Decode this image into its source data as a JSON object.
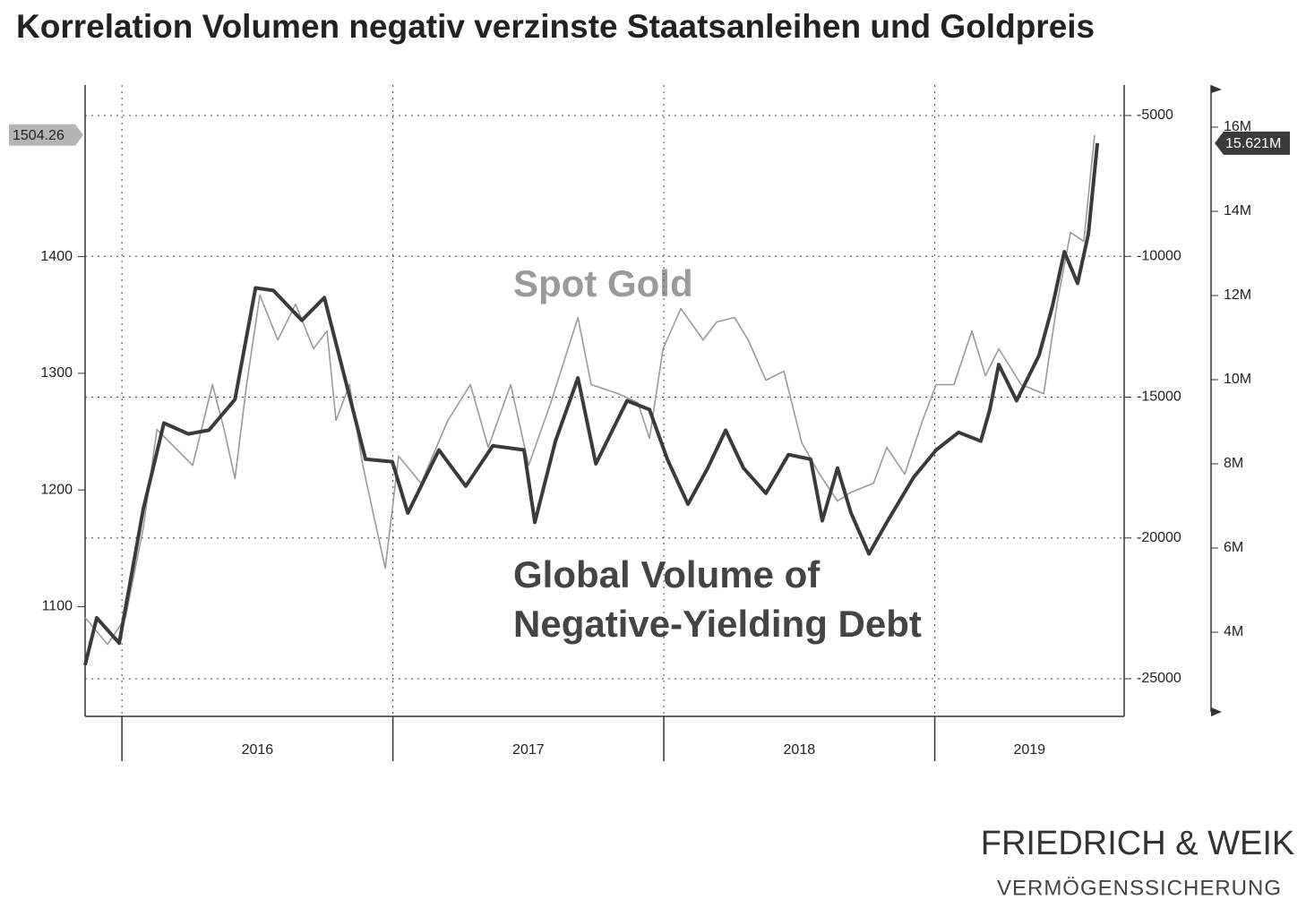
{
  "chart_data": {
    "type": "line",
    "title": "Korrelation Volumen negativ verzinste Staatsanleihen und Goldpreis",
    "xlim": [
      2015.864,
      2019.699
    ],
    "xticks": [
      2016,
      2017,
      2018,
      2019
    ],
    "ylim": [
      1006,
      1547
    ],
    "yticks": [
      1100,
      1200,
      1300,
      1400
    ],
    "y2lim": [
      -26335,
      -3919
    ],
    "y2ticks": [
      -25000,
      -20000,
      -15000,
      -10000,
      -5000
    ],
    "y3lim": [
      2.0,
      17.0
    ],
    "y3ticks": [
      {
        "value": 4,
        "label": "4M"
      },
      {
        "value": 6,
        "label": "6M"
      },
      {
        "value": 8,
        "label": "8M"
      },
      {
        "value": 10,
        "label": "10M"
      },
      {
        "value": 12,
        "label": "12M"
      },
      {
        "value": 14,
        "label": "14M"
      },
      {
        "value": 16,
        "label": "16M"
      }
    ],
    "grid": true,
    "series": [
      {
        "name": "Spot Gold",
        "color": "#9a9a9a",
        "axis": "y",
        "x": [
          2015.864,
          2015.947,
          2016.013,
          2016.079,
          2016.129,
          2016.195,
          2016.261,
          2016.334,
          2016.377,
          2016.417,
          2016.46,
          2016.509,
          2016.575,
          2016.641,
          2016.707,
          2016.757,
          2016.79,
          2016.84,
          2016.889,
          2016.939,
          2016.972,
          2017.021,
          2017.104,
          2017.203,
          2017.286,
          2017.352,
          2017.435,
          2017.501,
          2017.583,
          2017.683,
          2017.732,
          2017.831,
          2017.904,
          2017.947,
          2017.997,
          2018.063,
          2018.145,
          2018.195,
          2018.261,
          2018.311,
          2018.377,
          2018.443,
          2018.509,
          2018.575,
          2018.641,
          2018.691,
          2018.774,
          2018.823,
          2018.889,
          2018.955,
          2019.005,
          2019.071,
          2019.137,
          2019.187,
          2019.236,
          2019.319,
          2019.402,
          2019.451,
          2019.501,
          2019.55,
          2019.59
        ],
        "values": [
          1090.7,
          1067.7,
          1090.7,
          1167.5,
          1251.9,
          1236.5,
          1221.2,
          1290.3,
          1251.9,
          1209.7,
          1290.3,
          1367.0,
          1328.6,
          1359.3,
          1321.0,
          1336.3,
          1259.6,
          1290.3,
          1221.2,
          1167.5,
          1132.9,
          1228.9,
          1205.8,
          1259.6,
          1290.3,
          1236.5,
          1290.3,
          1221.2,
          1274.9,
          1347.8,
          1290.3,
          1282.6,
          1274.9,
          1244.2,
          1321.0,
          1355.5,
          1328.6,
          1344.0,
          1347.8,
          1328.6,
          1294.1,
          1301.8,
          1240.4,
          1213.5,
          1190.5,
          1198.0,
          1205.8,
          1236.5,
          1213.5,
          1259.6,
          1290.3,
          1290.3,
          1336.3,
          1297.9,
          1321.0,
          1290.3,
          1282.6,
          1359.3,
          1420.7,
          1413.0,
          1504.26
        ],
        "last_label": "1504.26"
      },
      {
        "label_lines": [
          "Global Volume of",
          "Negative-Yielding Debt"
        ],
        "color": "#3a3a3a",
        "axis": "y3",
        "x": [
          2015.864,
          2015.907,
          2015.99,
          2016.079,
          2016.155,
          2016.245,
          2016.321,
          2016.417,
          2016.493,
          2016.559,
          2016.664,
          2016.747,
          2016.899,
          2016.998,
          2017.055,
          2017.17,
          2017.269,
          2017.369,
          2017.484,
          2017.524,
          2017.6,
          2017.683,
          2017.749,
          2017.864,
          2017.947,
          2018.013,
          2018.089,
          2018.162,
          2018.228,
          2018.294,
          2018.377,
          2018.46,
          2018.542,
          2018.585,
          2018.641,
          2018.691,
          2018.757,
          2018.823,
          2018.922,
          2019.005,
          2019.088,
          2019.17,
          2019.203,
          2019.236,
          2019.302,
          2019.385,
          2019.435,
          2019.478,
          2019.527,
          2019.567,
          2019.6
        ],
        "values": [
          3.22,
          4.34,
          3.74,
          6.93,
          8.97,
          8.71,
          8.8,
          9.53,
          12.18,
          12.12,
          11.41,
          11.95,
          8.11,
          8.05,
          6.83,
          8.33,
          7.47,
          8.43,
          8.33,
          6.61,
          8.54,
          10.04,
          8.0,
          9.5,
          9.29,
          8.11,
          7.04,
          7.9,
          8.8,
          7.9,
          7.3,
          8.22,
          8.11,
          6.65,
          7.9,
          6.83,
          5.86,
          6.61,
          7.68,
          8.33,
          8.75,
          8.54,
          9.29,
          10.36,
          9.5,
          10.58,
          11.76,
          13.04,
          12.29,
          13.47,
          15.621
        ],
        "last_label": "15.621M"
      }
    ]
  },
  "logo": {
    "name": "FRIEDRICH & WEIK",
    "tagline": "VERMÖGENSSICHERUNG"
  }
}
